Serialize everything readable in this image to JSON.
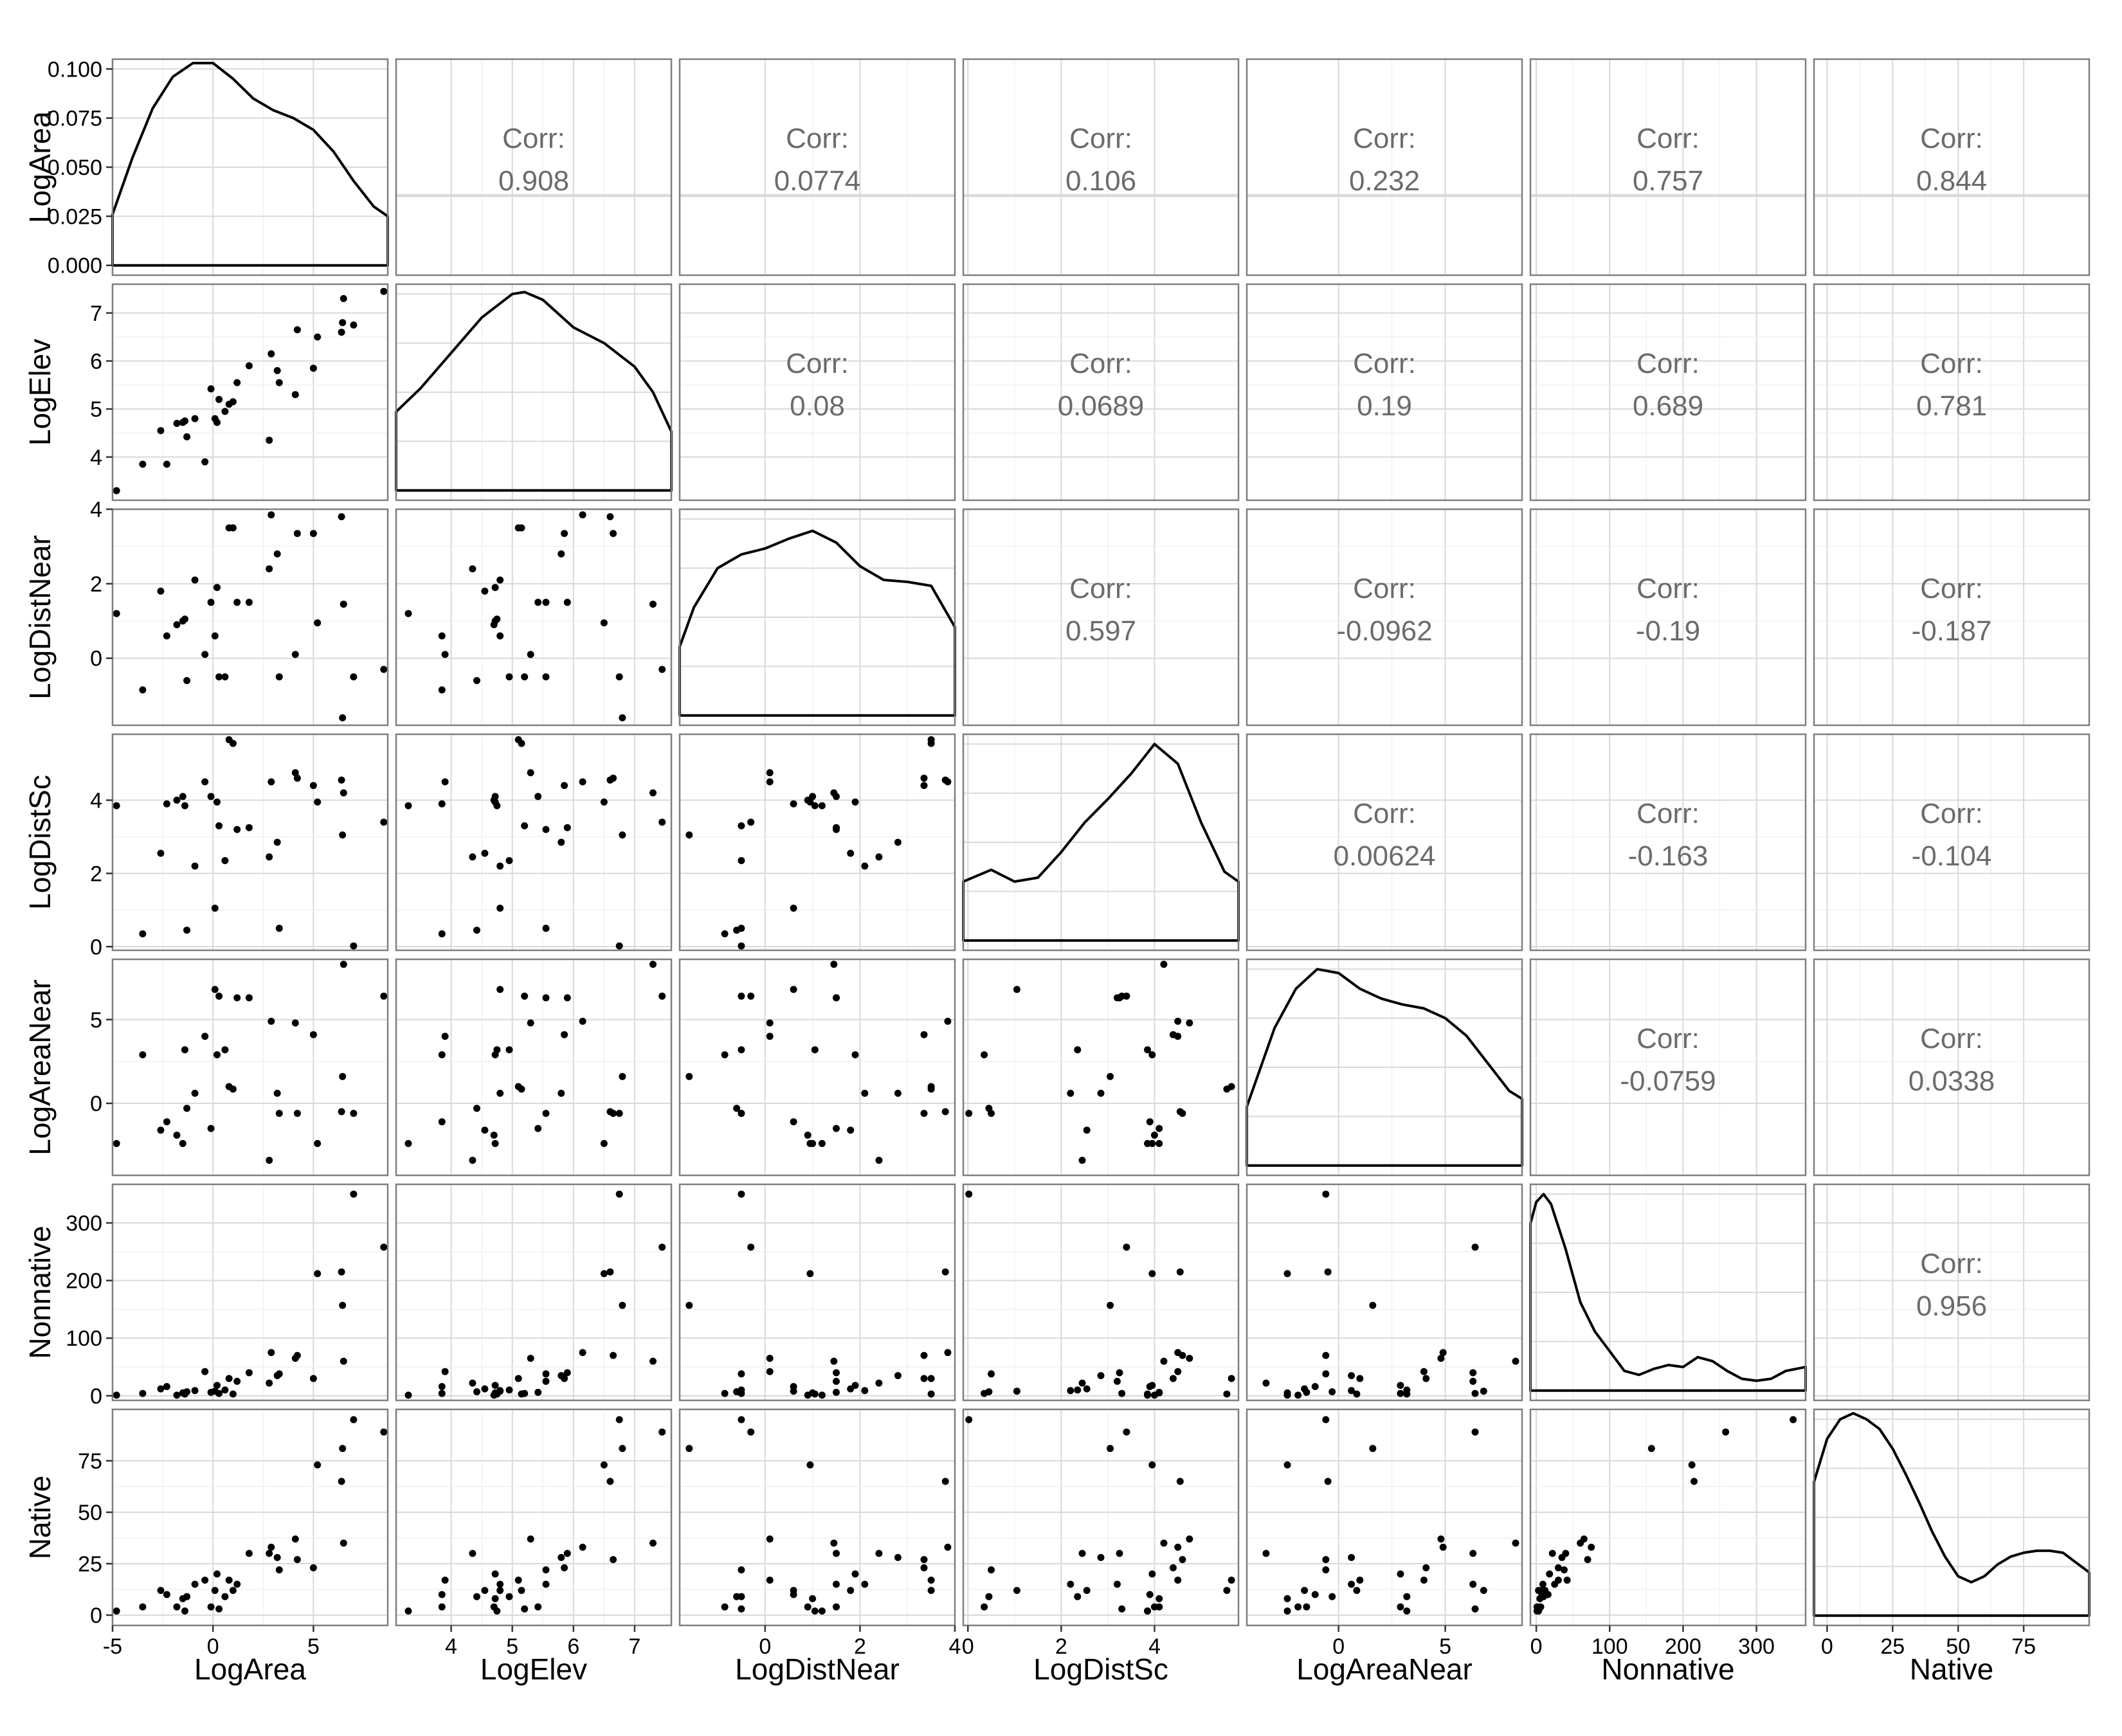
{
  "chart_data": {
    "type": "scatter-matrix",
    "variables": [
      "LogArea",
      "LogElev",
      "LogDistNear",
      "LogDistSc",
      "LogAreaNear",
      "Nonnative",
      "Native"
    ],
    "ranges": {
      "LogArea": [
        -5,
        8.7
      ],
      "LogElev": [
        3.1,
        7.6
      ],
      "LogDistNear": [
        -1.8,
        4.0
      ],
      "LogDistSc": [
        -0.1,
        5.8
      ],
      "LogAreaNear": [
        -4.3,
        8.6
      ],
      "Nonnative": [
        -8,
        367
      ],
      "Native": [
        -5,
        100
      ]
    },
    "density_ylim": [
      -0.005,
      0.105
    ],
    "x_ticks": {
      "LogArea": [
        -5,
        0,
        5
      ],
      "LogElev": [
        4,
        5,
        6,
        7
      ],
      "LogDistNear": [
        0,
        2,
        4
      ],
      "LogDistSc": [
        0,
        2,
        4
      ],
      "LogAreaNear": [
        0,
        5
      ],
      "Nonnative": [
        0,
        100,
        200,
        300
      ],
      "Native": [
        0,
        25,
        50,
        75
      ]
    },
    "y_ticks": {
      "LogArea": [
        "0.100",
        "0.075",
        "0.050",
        "0.025",
        "0.000"
      ],
      "LogElev": [
        4,
        5,
        6,
        7
      ],
      "LogDistNear": [
        0,
        2,
        4
      ],
      "LogDistSc": [
        0,
        2,
        4
      ],
      "LogAreaNear": [
        0,
        5
      ],
      "Nonnative": [
        0,
        100,
        200,
        300
      ],
      "Native": [
        0,
        25,
        50,
        75
      ]
    },
    "correlations": [
      {
        "row": 0,
        "col": 1,
        "label": "Corr:",
        "value": "0.908"
      },
      {
        "row": 0,
        "col": 2,
        "label": "Corr:",
        "value": "0.0774"
      },
      {
        "row": 0,
        "col": 3,
        "label": "Corr:",
        "value": "0.106"
      },
      {
        "row": 0,
        "col": 4,
        "label": "Corr:",
        "value": "0.232"
      },
      {
        "row": 0,
        "col": 5,
        "label": "Corr:",
        "value": "0.757"
      },
      {
        "row": 0,
        "col": 6,
        "label": "Corr:",
        "value": "0.844"
      },
      {
        "row": 1,
        "col": 2,
        "label": "Corr:",
        "value": "0.08"
      },
      {
        "row": 1,
        "col": 3,
        "label": "Corr:",
        "value": "0.0689"
      },
      {
        "row": 1,
        "col": 4,
        "label": "Corr:",
        "value": "0.19"
      },
      {
        "row": 1,
        "col": 5,
        "label": "Corr:",
        "value": "0.689"
      },
      {
        "row": 1,
        "col": 6,
        "label": "Corr:",
        "value": "0.781"
      },
      {
        "row": 2,
        "col": 3,
        "label": "Corr:",
        "value": "0.597"
      },
      {
        "row": 2,
        "col": 4,
        "label": "Corr:",
        "value": "-0.0962"
      },
      {
        "row": 2,
        "col": 5,
        "label": "Corr:",
        "value": "-0.19"
      },
      {
        "row": 2,
        "col": 6,
        "label": "Corr:",
        "value": "-0.187"
      },
      {
        "row": 3,
        "col": 4,
        "label": "Corr:",
        "value": "0.00624"
      },
      {
        "row": 3,
        "col": 5,
        "label": "Corr:",
        "value": "-0.163"
      },
      {
        "row": 3,
        "col": 6,
        "label": "Corr:",
        "value": "-0.104"
      },
      {
        "row": 4,
        "col": 5,
        "label": "Corr:",
        "value": "-0.0759"
      },
      {
        "row": 4,
        "col": 6,
        "label": "Corr:",
        "value": "0.0338"
      },
      {
        "row": 5,
        "col": 6,
        "label": "Corr:",
        "value": "0.956"
      }
    ],
    "observations": [
      {
        "LogArea": -4.8,
        "LogElev": 3.3,
        "LogDistNear": 1.2,
        "LogDistSc": 3.85,
        "LogAreaNear": -2.4,
        "Nonnative": 1,
        "Native": 2
      },
      {
        "LogArea": -3.5,
        "LogElev": 3.85,
        "LogDistNear": -0.85,
        "LogDistSc": 0.35,
        "LogAreaNear": 2.9,
        "Nonnative": 4,
        "Native": 4
      },
      {
        "LogArea": -2.6,
        "LogElev": 4.55,
        "LogDistNear": 1.8,
        "LogDistSc": 2.55,
        "LogAreaNear": -1.6,
        "Nonnative": 12,
        "Native": 12
      },
      {
        "LogArea": -2.3,
        "LogElev": 3.85,
        "LogDistNear": 0.6,
        "LogDistSc": 3.9,
        "LogAreaNear": -1.1,
        "Nonnative": 16,
        "Native": 10
      },
      {
        "LogArea": -1.8,
        "LogElev": 4.7,
        "LogDistNear": 0.9,
        "LogDistSc": 4.0,
        "LogAreaNear": -1.9,
        "Nonnative": 1,
        "Native": 4
      },
      {
        "LogArea": -1.5,
        "LogElev": 4.72,
        "LogDistNear": 1.0,
        "LogDistSc": 4.1,
        "LogAreaNear": -2.4,
        "Nonnative": 5,
        "Native": 8
      },
      {
        "LogArea": -1.3,
        "LogElev": 4.42,
        "LogDistNear": -0.6,
        "LogDistSc": 0.45,
        "LogAreaNear": -0.3,
        "Nonnative": 7,
        "Native": 9
      },
      {
        "LogArea": -1.4,
        "LogElev": 4.75,
        "LogDistNear": 1.05,
        "LogDistSc": 3.85,
        "LogAreaNear": 3.2,
        "Nonnative": 3,
        "Native": 2
      },
      {
        "LogArea": -0.9,
        "LogElev": 4.8,
        "LogDistNear": 2.1,
        "LogDistSc": 2.2,
        "LogAreaNear": 0.6,
        "Nonnative": 9,
        "Native": 15
      },
      {
        "LogArea": -0.4,
        "LogElev": 3.9,
        "LogDistNear": 0.1,
        "LogDistSc": 4.5,
        "LogAreaNear": 4.0,
        "Nonnative": 42,
        "Native": 17
      },
      {
        "LogArea": -0.1,
        "LogElev": 5.42,
        "LogDistNear": 1.5,
        "LogDistSc": 4.1,
        "LogAreaNear": -1.5,
        "Nonnative": 6,
        "Native": 4
      },
      {
        "LogArea": 0.1,
        "LogElev": 4.8,
        "LogDistNear": 0.6,
        "LogDistSc": 1.05,
        "LogAreaNear": 6.8,
        "Nonnative": 8,
        "Native": 12
      },
      {
        "LogArea": 0.2,
        "LogElev": 4.72,
        "LogDistNear": 1.9,
        "LogDistSc": 3.95,
        "LogAreaNear": 2.9,
        "Nonnative": 18,
        "Native": 20
      },
      {
        "LogArea": 0.3,
        "LogElev": 5.2,
        "LogDistNear": -0.5,
        "LogDistSc": 3.3,
        "LogAreaNear": 6.4,
        "Nonnative": 4,
        "Native": 3
      },
      {
        "LogArea": 0.6,
        "LogElev": 4.95,
        "LogDistNear": -0.5,
        "LogDistSc": 2.35,
        "LogAreaNear": 3.2,
        "Nonnative": 10,
        "Native": 9
      },
      {
        "LogArea": 0.8,
        "LogElev": 5.1,
        "LogDistNear": 3.5,
        "LogDistSc": 5.65,
        "LogAreaNear": 1.0,
        "Nonnative": 30,
        "Native": 17
      },
      {
        "LogArea": 1.0,
        "LogElev": 5.15,
        "LogDistNear": 3.5,
        "LogDistSc": 5.55,
        "LogAreaNear": 0.85,
        "Nonnative": 3,
        "Native": 12
      },
      {
        "LogArea": 1.2,
        "LogElev": 5.55,
        "LogDistNear": 1.5,
        "LogDistSc": 3.2,
        "LogAreaNear": 6.3,
        "Nonnative": 25,
        "Native": 15
      },
      {
        "LogArea": 1.8,
        "LogElev": 5.9,
        "LogDistNear": 1.5,
        "LogDistSc": 3.25,
        "LogAreaNear": 6.3,
        "Nonnative": 40,
        "Native": 30
      },
      {
        "LogArea": 2.8,
        "LogElev": 4.35,
        "LogDistNear": 2.4,
        "LogDistSc": 2.45,
        "LogAreaNear": -3.4,
        "Nonnative": 22,
        "Native": 30
      },
      {
        "LogArea": 2.9,
        "LogElev": 6.15,
        "LogDistNear": 3.85,
        "LogDistSc": 4.5,
        "LogAreaNear": 4.9,
        "Nonnative": 75,
        "Native": 33
      },
      {
        "LogArea": 3.2,
        "LogElev": 5.8,
        "LogDistNear": 2.8,
        "LogDistSc": 2.85,
        "LogAreaNear": 0.6,
        "Nonnative": 35,
        "Native": 28
      },
      {
        "LogArea": 3.3,
        "LogElev": 5.55,
        "LogDistNear": -0.5,
        "LogDistSc": 0.5,
        "LogAreaNear": -0.6,
        "Nonnative": 38,
        "Native": 22
      },
      {
        "LogArea": 4.1,
        "LogElev": 5.3,
        "LogDistNear": 0.1,
        "LogDistSc": 4.75,
        "LogAreaNear": 4.8,
        "Nonnative": 65,
        "Native": 37
      },
      {
        "LogArea": 4.2,
        "LogElev": 6.65,
        "LogDistNear": 3.35,
        "LogDistSc": 4.6,
        "LogAreaNear": -0.6,
        "Nonnative": 70,
        "Native": 27
      },
      {
        "LogArea": 5.0,
        "LogElev": 5.85,
        "LogDistNear": 3.35,
        "LogDistSc": 4.4,
        "LogAreaNear": 4.1,
        "Nonnative": 30,
        "Native": 23
      },
      {
        "LogArea": 5.2,
        "LogElev": 6.5,
        "LogDistNear": 0.95,
        "LogDistSc": 3.95,
        "LogAreaNear": -2.4,
        "Nonnative": 212,
        "Native": 73
      },
      {
        "LogArea": 6.4,
        "LogElev": 6.6,
        "LogDistNear": 3.8,
        "LogDistSc": 4.55,
        "LogAreaNear": -0.5,
        "Nonnative": 215,
        "Native": 65
      },
      {
        "LogArea": 6.45,
        "LogElev": 6.8,
        "LogDistNear": -1.6,
        "LogDistSc": 3.05,
        "LogAreaNear": 1.6,
        "Nonnative": 157,
        "Native": 81
      },
      {
        "LogArea": 6.5,
        "LogElev": 7.3,
        "LogDistNear": 1.45,
        "LogDistSc": 4.2,
        "LogAreaNear": 8.3,
        "Nonnative": 60,
        "Native": 35
      },
      {
        "LogArea": 7.0,
        "LogElev": 6.75,
        "LogDistNear": -0.5,
        "LogDistSc": 0.02,
        "LogAreaNear": -0.6,
        "Nonnative": 350,
        "Native": 95
      },
      {
        "LogArea": 8.5,
        "LogElev": 7.45,
        "LogDistNear": -0.3,
        "LogDistSc": 3.4,
        "LogAreaNear": 6.4,
        "Nonnative": 258,
        "Native": 89
      }
    ],
    "densities": {
      "LogArea": [
        [
          -5,
          0.026
        ],
        [
          -4,
          0.055
        ],
        [
          -3,
          0.08
        ],
        [
          -2,
          0.096
        ],
        [
          -1,
          0.103
        ],
        [
          0,
          0.103
        ],
        [
          1,
          0.095
        ],
        [
          2,
          0.085
        ],
        [
          3,
          0.079
        ],
        [
          4,
          0.075
        ],
        [
          5,
          0.069
        ],
        [
          6,
          0.058
        ],
        [
          7,
          0.043
        ],
        [
          8,
          0.03
        ],
        [
          8.7,
          0.025
        ]
      ],
      "LogElev": [
        [
          3.1,
          0.04
        ],
        [
          3.5,
          0.052
        ],
        [
          4.0,
          0.07
        ],
        [
          4.5,
          0.088
        ],
        [
          5.0,
          0.1
        ],
        [
          5.2,
          0.101
        ],
        [
          5.5,
          0.097
        ],
        [
          6.0,
          0.083
        ],
        [
          6.5,
          0.075
        ],
        [
          7.0,
          0.063
        ],
        [
          7.3,
          0.05
        ],
        [
          7.6,
          0.03
        ]
      ],
      "LogDistNear": [
        [
          -1.8,
          0.035
        ],
        [
          -1.5,
          0.055
        ],
        [
          -1.0,
          0.075
        ],
        [
          -0.5,
          0.082
        ],
        [
          0,
          0.085
        ],
        [
          0.5,
          0.09
        ],
        [
          1.0,
          0.094
        ],
        [
          1.5,
          0.088
        ],
        [
          2.0,
          0.076
        ],
        [
          2.5,
          0.069
        ],
        [
          3.0,
          0.068
        ],
        [
          3.5,
          0.066
        ],
        [
          4.0,
          0.045
        ]
      ],
      "LogDistSc": [
        [
          -0.1,
          0.03
        ],
        [
          0.5,
          0.036
        ],
        [
          1.0,
          0.03
        ],
        [
          1.5,
          0.032
        ],
        [
          2.0,
          0.045
        ],
        [
          2.5,
          0.06
        ],
        [
          3.0,
          0.072
        ],
        [
          3.5,
          0.085
        ],
        [
          4.0,
          0.1
        ],
        [
          4.5,
          0.09
        ],
        [
          5.0,
          0.06
        ],
        [
          5.5,
          0.035
        ],
        [
          5.8,
          0.03
        ]
      ],
      "LogAreaNear": [
        [
          -4.3,
          0.03
        ],
        [
          -3,
          0.07
        ],
        [
          -2,
          0.09
        ],
        [
          -1,
          0.1
        ],
        [
          0,
          0.098
        ],
        [
          1,
          0.09
        ],
        [
          2,
          0.085
        ],
        [
          3,
          0.082
        ],
        [
          4,
          0.08
        ],
        [
          5,
          0.075
        ],
        [
          6,
          0.066
        ],
        [
          7,
          0.052
        ],
        [
          8,
          0.038
        ],
        [
          8.6,
          0.034
        ]
      ],
      "Nonnative": [
        [
          -8,
          0.085
        ],
        [
          0,
          0.096
        ],
        [
          10,
          0.1
        ],
        [
          20,
          0.095
        ],
        [
          40,
          0.072
        ],
        [
          60,
          0.045
        ],
        [
          80,
          0.03
        ],
        [
          100,
          0.02
        ],
        [
          120,
          0.01
        ],
        [
          140,
          0.008
        ],
        [
          160,
          0.011
        ],
        [
          180,
          0.013
        ],
        [
          200,
          0.012
        ],
        [
          220,
          0.017
        ],
        [
          240,
          0.015
        ],
        [
          260,
          0.01
        ],
        [
          280,
          0.006
        ],
        [
          300,
          0.005
        ],
        [
          320,
          0.006
        ],
        [
          340,
          0.01
        ],
        [
          367,
          0.012
        ]
      ],
      "Native": [
        [
          -5,
          0.068
        ],
        [
          0,
          0.09
        ],
        [
          5,
          0.1
        ],
        [
          10,
          0.103
        ],
        [
          15,
          0.1
        ],
        [
          20,
          0.095
        ],
        [
          25,
          0.085
        ],
        [
          30,
          0.072
        ],
        [
          35,
          0.058
        ],
        [
          40,
          0.043
        ],
        [
          45,
          0.03
        ],
        [
          50,
          0.02
        ],
        [
          55,
          0.017
        ],
        [
          60,
          0.02
        ],
        [
          65,
          0.026
        ],
        [
          70,
          0.03
        ],
        [
          75,
          0.032
        ],
        [
          80,
          0.033
        ],
        [
          85,
          0.033
        ],
        [
          90,
          0.032
        ],
        [
          95,
          0.027
        ],
        [
          100,
          0.022
        ]
      ]
    },
    "grid": true
  }
}
